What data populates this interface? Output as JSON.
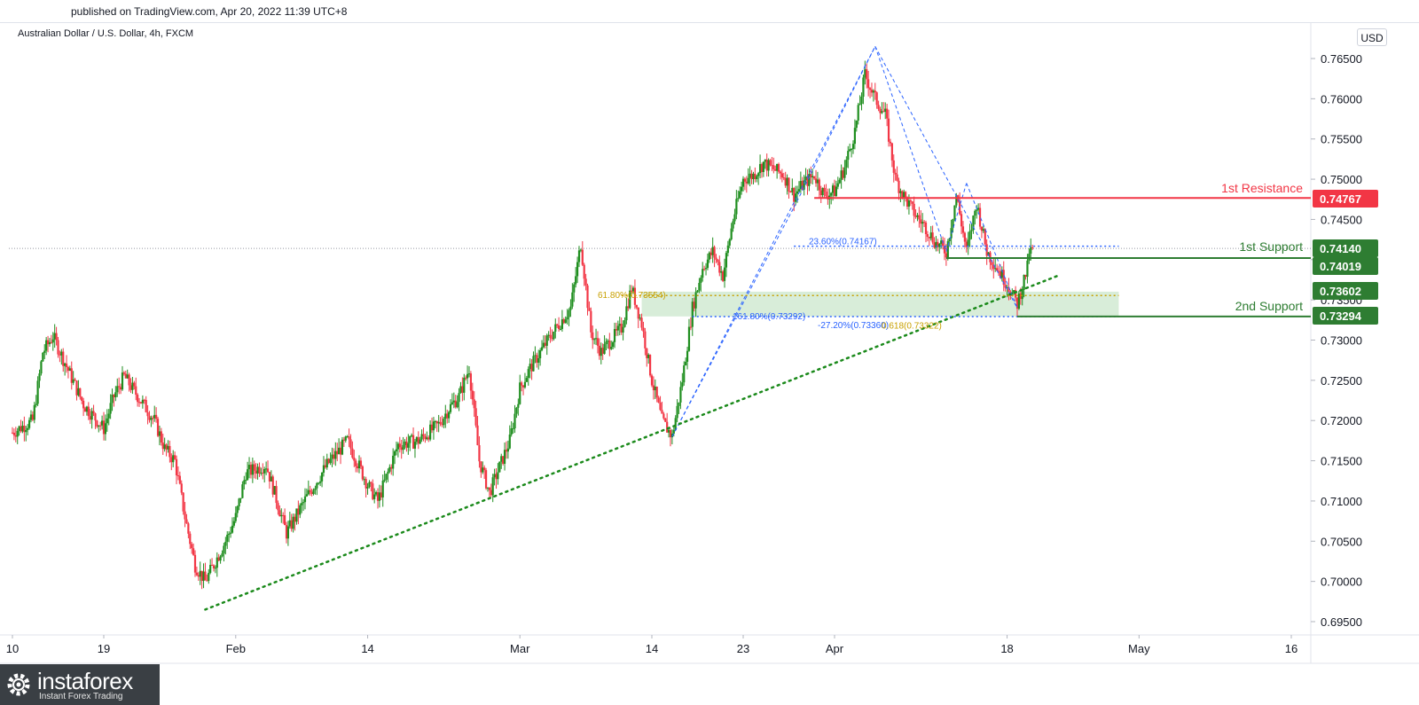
{
  "header": {
    "published": "published on TradingView.com, Apr 20, 2022 11:39 UTC+8",
    "symbol": "Australian Dollar / U.S. Dollar, 4h, FXCM",
    "currency": "USD"
  },
  "chart_data": {
    "type": "candlestick",
    "title": "Australian Dollar / U.S. Dollar, 4h, FXCM",
    "y_ticks": [
      "0.76500",
      "0.76000",
      "0.75500",
      "0.75000",
      "0.74500",
      "0.74000",
      "0.73500",
      "0.73000",
      "0.72500",
      "0.72000",
      "0.71500",
      "0.71000",
      "0.70500",
      "0.70000",
      "0.69500"
    ],
    "ylim": [
      0.6935,
      0.7685
    ],
    "x_ticks": [
      {
        "label": "10",
        "date": "2022-01-10"
      },
      {
        "label": "19",
        "date": "2022-01-19"
      },
      {
        "label": "Feb",
        "date": "2022-02-01"
      },
      {
        "label": "14",
        "date": "2022-02-14"
      },
      {
        "label": "Mar",
        "date": "2022-03-01"
      },
      {
        "label": "14",
        "date": "2022-03-14"
      },
      {
        "label": "23",
        "date": "2022-03-23"
      },
      {
        "label": "Apr",
        "date": "2022-04-01"
      },
      {
        "label": "18",
        "date": "2022-04-18"
      },
      {
        "label": "May",
        "date": "2022-05-01"
      },
      {
        "label": "16",
        "date": "2022-05-16"
      }
    ],
    "price_path": [
      [
        "2022-01-10",
        0.7185
      ],
      [
        "2022-01-12",
        0.72
      ],
      [
        "2022-01-13",
        0.7285
      ],
      [
        "2022-01-14",
        0.7305
      ],
      [
        "2022-01-17",
        0.722
      ],
      [
        "2022-01-19",
        0.719
      ],
      [
        "2022-01-20",
        0.723
      ],
      [
        "2022-01-21",
        0.7255
      ],
      [
        "2022-01-24",
        0.72
      ],
      [
        "2022-01-25",
        0.7165
      ],
      [
        "2022-01-26",
        0.715
      ],
      [
        "2022-01-27",
        0.708
      ],
      [
        "2022-01-28",
        0.702
      ],
      [
        "2022-01-29",
        0.7
      ],
      [
        "2022-01-31",
        0.705
      ],
      [
        "2022-02-01",
        0.708
      ],
      [
        "2022-02-02",
        0.7135
      ],
      [
        "2022-02-04",
        0.7145
      ],
      [
        "2022-02-06",
        0.706
      ],
      [
        "2022-02-08",
        0.7105
      ],
      [
        "2022-02-10",
        0.7145
      ],
      [
        "2022-02-12",
        0.7175
      ],
      [
        "2022-02-14",
        0.712
      ],
      [
        "2022-02-15",
        0.71
      ],
      [
        "2022-02-17",
        0.717
      ],
      [
        "2022-02-19",
        0.7175
      ],
      [
        "2022-02-21",
        0.7195
      ],
      [
        "2022-02-22",
        0.7215
      ],
      [
        "2022-02-23",
        0.723
      ],
      [
        "2022-02-24",
        0.7265
      ],
      [
        "2022-02-25",
        0.715
      ],
      [
        "2022-02-26",
        0.711
      ],
      [
        "2022-02-28",
        0.7175
      ],
      [
        "2022-03-01",
        0.724
      ],
      [
        "2022-03-02",
        0.7265
      ],
      [
        "2022-03-04",
        0.7305
      ],
      [
        "2022-03-06",
        0.734
      ],
      [
        "2022-03-07",
        0.742
      ],
      [
        "2022-03-08",
        0.731
      ],
      [
        "2022-03-09",
        0.7285
      ],
      [
        "2022-03-11",
        0.7315
      ],
      [
        "2022-03-12",
        0.7365
      ],
      [
        "2022-03-13",
        0.732
      ],
      [
        "2022-03-14",
        0.725
      ],
      [
        "2022-03-15",
        0.72
      ],
      [
        "2022-03-16",
        0.718
      ],
      [
        "2022-03-17",
        0.725
      ],
      [
        "2022-03-18",
        0.734
      ],
      [
        "2022-03-19",
        0.739
      ],
      [
        "2022-03-20",
        0.741
      ],
      [
        "2022-03-21",
        0.738
      ],
      [
        "2022-03-22",
        0.745
      ],
      [
        "2022-03-23",
        0.75
      ],
      [
        "2022-03-24",
        0.7505
      ],
      [
        "2022-03-25",
        0.752
      ],
      [
        "2022-03-27",
        0.7505
      ],
      [
        "2022-03-28",
        0.748
      ],
      [
        "2022-03-29",
        0.7495
      ],
      [
        "2022-03-30",
        0.7505
      ],
      [
        "2022-03-31",
        0.748
      ],
      [
        "2022-04-01",
        0.7485
      ],
      [
        "2022-04-02",
        0.7515
      ],
      [
        "2022-04-03",
        0.756
      ],
      [
        "2022-04-04",
        0.763
      ],
      [
        "2022-04-05",
        0.76
      ],
      [
        "2022-04-06",
        0.758
      ],
      [
        "2022-04-07",
        0.75
      ],
      [
        "2022-04-08",
        0.7475
      ],
      [
        "2022-04-09",
        0.7455
      ],
      [
        "2022-04-10",
        0.744
      ],
      [
        "2022-04-11",
        0.742
      ],
      [
        "2022-04-12",
        0.741
      ],
      [
        "2022-04-13",
        0.748
      ],
      [
        "2022-04-14",
        0.741
      ],
      [
        "2022-04-15",
        0.747
      ],
      [
        "2022-04-16",
        0.741
      ],
      [
        "2022-04-17",
        0.739
      ],
      [
        "2022-04-18",
        0.737
      ],
      [
        "2022-04-19",
        0.7345
      ],
      [
        "2022-04-20",
        0.739
      ],
      [
        "2022-04-20",
        0.741
      ]
    ],
    "levels": [
      {
        "label": "1st Resistance",
        "value": "0.74767",
        "price": 0.74767,
        "color": "#f23645",
        "from": "2022-03-30"
      },
      {
        "label": "1st Support",
        "value": "0.74019",
        "price": 0.74019,
        "color": "#2e7d32",
        "from": "2022-04-12"
      },
      {
        "label": "2nd Support",
        "value": "0.73294",
        "price": 0.73294,
        "color": "#2e7d32",
        "from": "2022-04-19"
      }
    ],
    "price_tags": [
      {
        "value": "0.74767",
        "price": 0.74767,
        "color": "#f23645"
      },
      {
        "value": "0.74140",
        "price": 0.7414,
        "color": "#2e7d32"
      },
      {
        "value": "0.74019",
        "price": 0.74019,
        "color": "#2e7d32"
      },
      {
        "value": "0.73602",
        "price": 0.73602,
        "color": "#2e7d32"
      },
      {
        "value": "0.73294",
        "price": 0.73294,
        "color": "#2e7d32"
      }
    ],
    "zone": {
      "from": "2022-03-13",
      "to": "2022-04-29",
      "top": 0.73602,
      "bottom": 0.73294,
      "color": "#c8e6c9"
    },
    "fib_annotations": [
      {
        "text": "23.60%(0.74167)",
        "price": 0.74167,
        "from": "2022-03-28",
        "to": "2022-04-29",
        "color": "#2962ff",
        "style": "dotted"
      },
      {
        "text": "61.80%(0.73554)",
        "price": 0.73554,
        "from": "2022-03-11",
        "to": "2022-04-29",
        "color": "#c8a000",
        "style": "dotted"
      },
      {
        "text": "-27.20%(0.73360)",
        "price": 0.7336,
        "from": null,
        "to": null,
        "color": "#2962ff",
        "style": "text"
      },
      {
        "text": "0.618(0.73322)",
        "price": 0.73322,
        "from": null,
        "to": null,
        "color": "#c8a000",
        "style": "text"
      },
      {
        "text": "161.80%(0.73292)",
        "price": 0.73292,
        "from": "2022-03-18",
        "to": "2022-04-29",
        "color": "#2962ff",
        "style": "dotted"
      }
    ],
    "last_price": 0.7414,
    "trendline": {
      "points": [
        [
          "2022-01-29",
          0.6965
        ],
        [
          "2022-04-23",
          0.738
        ]
      ],
      "color": "#1b8a1b",
      "style": "dotted"
    },
    "harmonic_pattern": {
      "points": [
        [
          "2022-03-16",
          0.718
        ],
        [
          "2022-03-28",
          0.7465
        ],
        [
          "2022-04-05",
          0.7665
        ],
        [
          "2022-04-12",
          0.741
        ],
        [
          "2022-04-14",
          0.7495
        ],
        [
          "2022-04-19",
          0.734
        ]
      ],
      "color": "#2962ff",
      "style": "dashed"
    },
    "colors": {
      "up": "#26a69a",
      "down": "#ef5350",
      "up_body": "#1f8e1f",
      "down_body": "#f23645"
    }
  },
  "branding": {
    "name": "instaforex",
    "tagline": "Instant Forex Trading"
  }
}
